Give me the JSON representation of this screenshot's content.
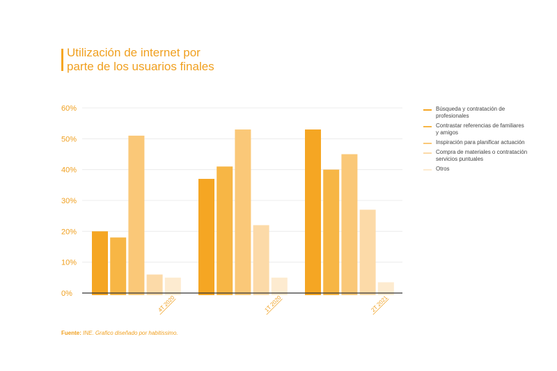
{
  "title": [
    "Utilización de internet por",
    "parte de los usuarios finales"
  ],
  "legend": [
    {
      "label": "Búsqueda y contratación de profesionales",
      "color": "#f5a623"
    },
    {
      "label": "Contrastar referencias de familiares y amigos",
      "color": "#f7b645"
    },
    {
      "label": "Inspiración para planificar actuación",
      "color": "#fac878"
    },
    {
      "label": "Compra de materiales o contratación servicios puntuales",
      "color": "#fcdaa8"
    },
    {
      "label": "Otros",
      "color": "#fdebd0"
    }
  ],
  "source": {
    "label": "Fuente:",
    "text": "INE. Grafico diseñado por habitissimo."
  },
  "chart_data": {
    "type": "bar",
    "categories": [
      "4T 2020",
      "1T 2020",
      "2T 2021"
    ],
    "series": [
      {
        "name": "Búsqueda y contratación de profesionales",
        "values": [
          20,
          37,
          53
        ]
      },
      {
        "name": "Contrastar referencias de familiares y amigos",
        "values": [
          18,
          41,
          40
        ]
      },
      {
        "name": "Inspiración para planificar actuación",
        "values": [
          51,
          53,
          45
        ]
      },
      {
        "name": "Compra de materiales o contratación servicios puntuales",
        "values": [
          6,
          22,
          27
        ]
      },
      {
        "name": "Otros",
        "values": [
          5,
          5,
          3.5
        ]
      }
    ],
    "yticks": [
      "0%",
      "10%",
      "20%",
      "30%",
      "40%",
      "50%",
      "60%"
    ],
    "ylim": [
      0,
      60
    ],
    "grid": true,
    "legend_position": "right"
  }
}
